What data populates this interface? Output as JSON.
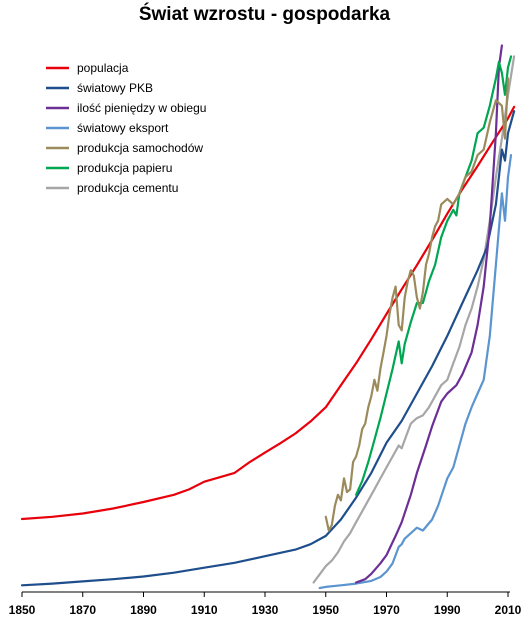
{
  "chart_data": {
    "type": "line",
    "title": "Świat wzrostu - gospodarka",
    "xlabel": "",
    "ylabel": "",
    "xlim": [
      1850,
      2017
    ],
    "ylim": [
      0,
      100
    ],
    "x_ticks": [
      "1850",
      "1870",
      "1890",
      "1910",
      "1930",
      "1950",
      "1970",
      "1990",
      "2010"
    ],
    "grid": false,
    "legend": "top-left",
    "series": [
      {
        "name": "populacja",
        "color": "#e8000b",
        "points": [
          [
            1850,
            12.6
          ],
          [
            1860,
            13
          ],
          [
            1870,
            13.6
          ],
          [
            1880,
            14.5
          ],
          [
            1890,
            15.7
          ],
          [
            1900,
            17
          ],
          [
            1905,
            18
          ],
          [
            1910,
            19.4
          ],
          [
            1920,
            21
          ],
          [
            1925,
            23
          ],
          [
            1930,
            24.7
          ],
          [
            1935,
            26.4
          ],
          [
            1940,
            28.2
          ],
          [
            1945,
            30.4
          ],
          [
            1950,
            33
          ],
          [
            1955,
            37
          ],
          [
            1960,
            41
          ],
          [
            1965,
            45.4
          ],
          [
            1970,
            50
          ],
          [
            1975,
            54.5
          ],
          [
            1980,
            58.9
          ],
          [
            1985,
            63.5
          ],
          [
            1990,
            68.3
          ],
          [
            1995,
            72.8
          ],
          [
            2000,
            77
          ],
          [
            2005,
            81.4
          ],
          [
            2010,
            85.7
          ],
          [
            2012,
            87.8
          ]
        ]
      },
      {
        "name": "światowy PKB",
        "color": "#1f4e8c",
        "points": [
          [
            1850,
            0.5
          ],
          [
            1860,
            0.8
          ],
          [
            1870,
            1.2
          ],
          [
            1880,
            1.6
          ],
          [
            1890,
            2.1
          ],
          [
            1900,
            2.8
          ],
          [
            1910,
            3.7
          ],
          [
            1920,
            4.6
          ],
          [
            1930,
            5.8
          ],
          [
            1940,
            7
          ],
          [
            1945,
            8
          ],
          [
            1950,
            9.5
          ],
          [
            1955,
            12.5
          ],
          [
            1960,
            16.5
          ],
          [
            1965,
            21
          ],
          [
            1970,
            26.5
          ],
          [
            1975,
            30.5
          ],
          [
            1980,
            35.5
          ],
          [
            1985,
            40.5
          ],
          [
            1990,
            46
          ],
          [
            1995,
            52
          ],
          [
            2000,
            58
          ],
          [
            2003,
            62
          ],
          [
            2006,
            70
          ],
          [
            2008,
            80
          ],
          [
            2009,
            78
          ],
          [
            2010,
            83
          ],
          [
            2012,
            87
          ]
        ]
      },
      {
        "name": "ilość pieniędzy w obiegu",
        "color": "#6b2f96",
        "points": [
          [
            1960,
            1
          ],
          [
            1963,
            1.6
          ],
          [
            1965,
            2.6
          ],
          [
            1968,
            4.5
          ],
          [
            1970,
            6
          ],
          [
            1973,
            9.5
          ],
          [
            1975,
            12
          ],
          [
            1978,
            17
          ],
          [
            1980,
            21
          ],
          [
            1983,
            26
          ],
          [
            1985,
            29.5
          ],
          [
            1988,
            34
          ],
          [
            1990,
            35.5
          ],
          [
            1993,
            37
          ],
          [
            1995,
            39
          ],
          [
            1998,
            43
          ],
          [
            2000,
            48
          ],
          [
            2002,
            55
          ],
          [
            2004,
            66
          ],
          [
            2006,
            83
          ],
          [
            2007,
            95
          ],
          [
            2008,
            99
          ]
        ]
      },
      {
        "name": "światowy eksport",
        "color": "#5b95d0",
        "points": [
          [
            1948,
            0
          ],
          [
            1950,
            0.2
          ],
          [
            1955,
            0.5
          ],
          [
            1960,
            0.8
          ],
          [
            1965,
            1.3
          ],
          [
            1968,
            2
          ],
          [
            1970,
            3
          ],
          [
            1972,
            4.5
          ],
          [
            1974,
            7.5
          ],
          [
            1975,
            8
          ],
          [
            1976,
            9
          ],
          [
            1978,
            10
          ],
          [
            1980,
            11
          ],
          [
            1982,
            10.5
          ],
          [
            1985,
            12.5
          ],
          [
            1987,
            15
          ],
          [
            1990,
            20
          ],
          [
            1992,
            22
          ],
          [
            1994,
            26
          ],
          [
            1996,
            30
          ],
          [
            1998,
            33
          ],
          [
            2000,
            35.5
          ],
          [
            2002,
            38
          ],
          [
            2004,
            46
          ],
          [
            2006,
            59
          ],
          [
            2008,
            72
          ],
          [
            2009,
            67
          ],
          [
            2010,
            75
          ],
          [
            2011,
            79
          ]
        ]
      },
      {
        "name": "produkcja samochodów",
        "color": "#9b8a5c",
        "points": [
          [
            1950,
            13
          ],
          [
            1951,
            10.5
          ],
          [
            1952,
            11.5
          ],
          [
            1953,
            15
          ],
          [
            1954,
            17
          ],
          [
            1955,
            16
          ],
          [
            1956,
            20
          ],
          [
            1957,
            17.5
          ],
          [
            1958,
            18
          ],
          [
            1959,
            23
          ],
          [
            1960,
            24
          ],
          [
            1961,
            26
          ],
          [
            1962,
            29
          ],
          [
            1963,
            30
          ],
          [
            1964,
            33
          ],
          [
            1965,
            35
          ],
          [
            1966,
            38
          ],
          [
            1967,
            36
          ],
          [
            1968,
            40
          ],
          [
            1969,
            43
          ],
          [
            1970,
            46
          ],
          [
            1971,
            50
          ],
          [
            1972,
            53
          ],
          [
            1973,
            55
          ],
          [
            1974,
            48
          ],
          [
            1975,
            47
          ],
          [
            1976,
            53
          ],
          [
            1977,
            56
          ],
          [
            1978,
            58
          ],
          [
            1979,
            57
          ],
          [
            1980,
            53
          ],
          [
            1981,
            51
          ],
          [
            1982,
            54
          ],
          [
            1983,
            59
          ],
          [
            1984,
            61
          ],
          [
            1985,
            64
          ],
          [
            1986,
            66
          ],
          [
            1987,
            67
          ],
          [
            1988,
            70
          ],
          [
            1990,
            71
          ],
          [
            1992,
            70
          ],
          [
            1994,
            72
          ],
          [
            1996,
            75
          ],
          [
            1998,
            76
          ],
          [
            2000,
            79
          ],
          [
            2002,
            80
          ],
          [
            2004,
            85
          ],
          [
            2006,
            89
          ],
          [
            2008,
            88
          ],
          [
            2009,
            82
          ],
          [
            2010,
            93
          ]
        ]
      },
      {
        "name": "produkcja papieru",
        "color": "#00a651",
        "points": [
          [
            1960,
            17
          ],
          [
            1962,
            19.5
          ],
          [
            1964,
            23
          ],
          [
            1966,
            27
          ],
          [
            1968,
            31
          ],
          [
            1970,
            35.5
          ],
          [
            1972,
            40
          ],
          [
            1974,
            45
          ],
          [
            1975,
            41
          ],
          [
            1976,
            44.5
          ],
          [
            1978,
            48.5
          ],
          [
            1980,
            52
          ],
          [
            1982,
            52
          ],
          [
            1984,
            56
          ],
          [
            1986,
            59
          ],
          [
            1988,
            64
          ],
          [
            1990,
            67
          ],
          [
            1992,
            69
          ],
          [
            1993,
            68
          ],
          [
            1994,
            72
          ],
          [
            1996,
            75
          ],
          [
            1998,
            78
          ],
          [
            2000,
            83
          ],
          [
            2002,
            84
          ],
          [
            2004,
            88
          ],
          [
            2006,
            93
          ],
          [
            2007,
            96
          ],
          [
            2008,
            94
          ],
          [
            2009,
            90
          ],
          [
            2010,
            95
          ],
          [
            2011,
            97
          ]
        ]
      },
      {
        "name": "produkcja cementu",
        "color": "#a6a6a6",
        "points": [
          [
            1946,
            1
          ],
          [
            1948,
            2.5
          ],
          [
            1950,
            4
          ],
          [
            1952,
            5
          ],
          [
            1954,
            6.5
          ],
          [
            1956,
            8.5
          ],
          [
            1958,
            10
          ],
          [
            1960,
            12
          ],
          [
            1962,
            14
          ],
          [
            1964,
            16
          ],
          [
            1966,
            18
          ],
          [
            1968,
            20
          ],
          [
            1970,
            22
          ],
          [
            1972,
            24
          ],
          [
            1974,
            26
          ],
          [
            1975,
            25.5
          ],
          [
            1976,
            27
          ],
          [
            1978,
            30
          ],
          [
            1980,
            31
          ],
          [
            1982,
            31.5
          ],
          [
            1984,
            33
          ],
          [
            1986,
            35
          ],
          [
            1988,
            37
          ],
          [
            1990,
            38
          ],
          [
            1992,
            41
          ],
          [
            1994,
            44
          ],
          [
            1996,
            48
          ],
          [
            1998,
            51
          ],
          [
            2000,
            55
          ],
          [
            2002,
            60
          ],
          [
            2004,
            67
          ],
          [
            2006,
            75
          ],
          [
            2008,
            82
          ],
          [
            2010,
            90
          ],
          [
            2012,
            97
          ]
        ]
      }
    ]
  }
}
